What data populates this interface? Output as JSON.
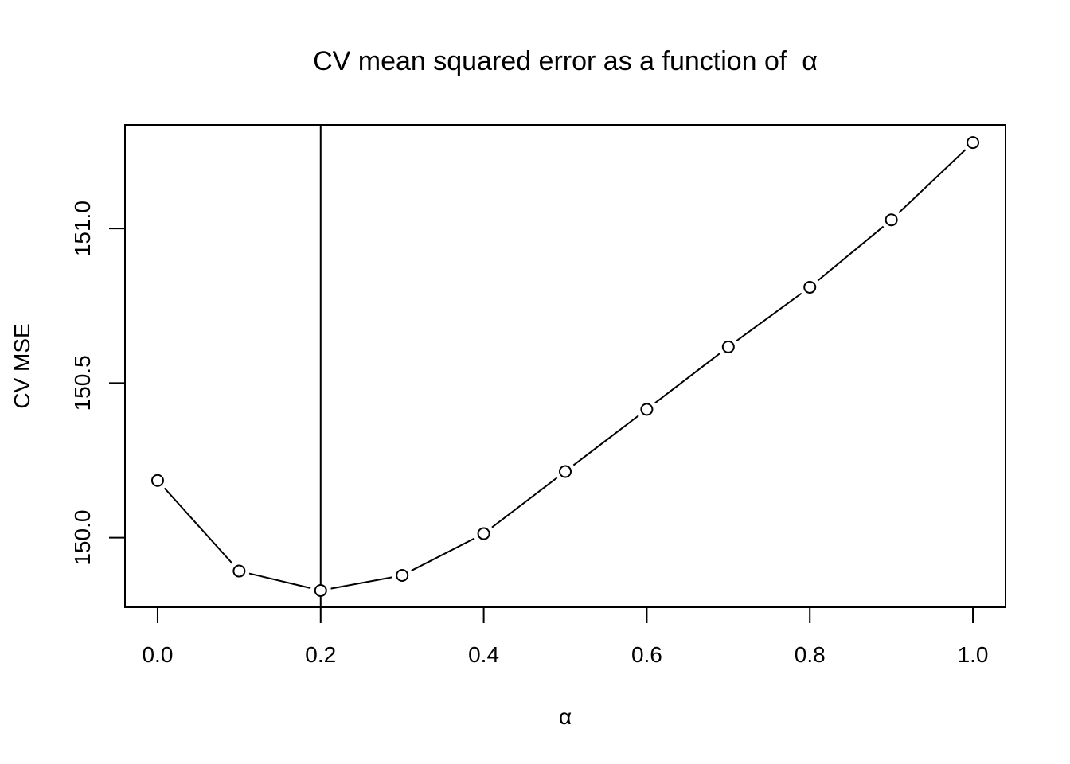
{
  "chart_data": {
    "type": "line",
    "title": "CV mean squared error as a function of  α",
    "xlabel": "α",
    "ylabel": "CV MSE",
    "x": [
      0.0,
      0.1,
      0.2,
      0.3,
      0.4,
      0.5,
      0.6,
      0.7,
      0.8,
      0.9,
      1.0
    ],
    "series": [
      {
        "values": [
          150.185,
          149.892,
          149.829,
          149.878,
          150.013,
          150.214,
          150.415,
          150.617,
          150.81,
          151.028,
          151.278
        ],
        "marker": "open-circle",
        "line": "solid",
        "color": "#000000"
      }
    ],
    "vline": {
      "x": 0.2,
      "color": "#000000"
    },
    "xticks": [
      "0.0",
      "0.2",
      "0.4",
      "0.6",
      "0.8",
      "1.0"
    ],
    "xtick_values": [
      0.0,
      0.2,
      0.4,
      0.6,
      0.8,
      1.0
    ],
    "yticks": [
      "150.0",
      "150.5",
      "151.0"
    ],
    "ytick_values": [
      150.0,
      150.5,
      151.0
    ],
    "xlim": [
      -0.04,
      1.04
    ],
    "ylim": [
      149.775,
      151.335
    ],
    "grid": false,
    "legend": "none"
  }
}
